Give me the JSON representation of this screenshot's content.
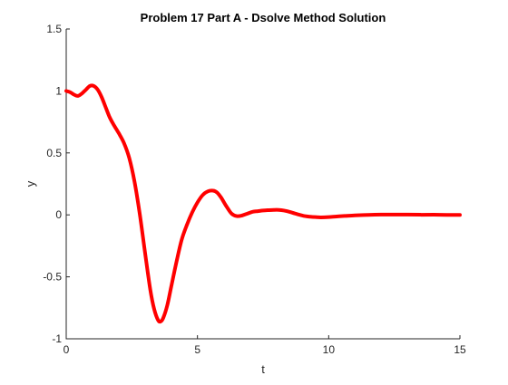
{
  "chart_data": {
    "type": "line",
    "title": "Problem 17 Part A - Dsolve Method Solution",
    "xlabel": "t",
    "ylabel": "y",
    "xlim": [
      0,
      15
    ],
    "ylim": [
      -1,
      1.5
    ],
    "xticks": [
      0,
      5,
      10,
      15
    ],
    "xtick_labels": [
      "0",
      "5",
      "10",
      "15"
    ],
    "yticks": [
      -1,
      -0.5,
      0,
      0.5,
      1,
      1.5
    ],
    "ytick_labels": [
      "-1",
      "-0.5",
      "0",
      "0.5",
      "1",
      "1.5"
    ],
    "grid": false,
    "legend": "none",
    "series": [
      {
        "color": "#ff0000",
        "x": [
          0,
          0.15,
          0.3,
          0.45,
          0.6,
          0.75,
          0.9,
          1.05,
          1.2,
          1.35,
          1.5,
          1.65,
          1.8,
          2.0,
          2.2,
          2.4,
          2.6,
          2.8,
          3.0,
          3.2,
          3.35,
          3.5,
          3.6,
          3.7,
          3.85,
          4.0,
          4.2,
          4.4,
          4.6,
          4.8,
          5.0,
          5.2,
          5.4,
          5.6,
          5.75,
          5.9,
          6.1,
          6.3,
          6.5,
          6.7,
          6.9,
          7.1,
          7.3,
          7.5,
          7.7,
          7.9,
          8.1,
          8.3,
          8.5,
          8.7,
          8.9,
          9.1,
          9.3,
          9.5,
          9.7,
          10.0,
          10.3,
          10.6,
          11.0,
          11.5,
          12.0,
          12.5,
          13.0,
          13.5,
          14.0,
          14.5,
          15.0
        ],
        "y": [
          1.0,
          0.99,
          0.97,
          0.96,
          0.98,
          1.01,
          1.04,
          1.04,
          1.01,
          0.95,
          0.87,
          0.79,
          0.73,
          0.66,
          0.58,
          0.46,
          0.27,
          0.01,
          -0.3,
          -0.6,
          -0.76,
          -0.85,
          -0.86,
          -0.83,
          -0.73,
          -0.58,
          -0.38,
          -0.2,
          -0.08,
          0.02,
          0.1,
          0.16,
          0.19,
          0.195,
          0.18,
          0.14,
          0.07,
          0.01,
          -0.01,
          -0.005,
          0.01,
          0.025,
          0.03,
          0.035,
          0.038,
          0.04,
          0.04,
          0.035,
          0.025,
          0.012,
          0.0,
          -0.01,
          -0.015,
          -0.018,
          -0.02,
          -0.018,
          -0.013,
          -0.009,
          -0.004,
          0.0,
          0.002,
          0.002,
          0.002,
          0.001,
          0.001,
          0.0,
          0.0
        ]
      }
    ]
  }
}
